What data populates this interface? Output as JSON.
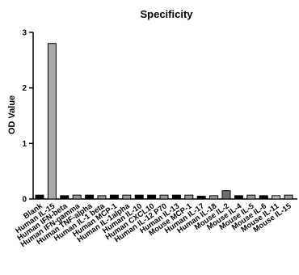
{
  "chart_data": {
    "type": "bar",
    "title": "Specificity",
    "xlabel": "",
    "ylabel": "OD Value",
    "ylim": [
      0,
      3
    ],
    "yticks": [
      0,
      1,
      2,
      3
    ],
    "grid": false,
    "categories": [
      "Blank",
      "Human IL-15",
      "Human IFN-beta",
      "Human IFN-gamma",
      "Human TNF-alpha",
      "Human IL-1 beta",
      "Human MCP-1",
      "Human IL-1alpha",
      "Human IL-10",
      "Human CXCL10",
      "Human IL-12 P70",
      "Human IL-13",
      "Mouse MCP-1",
      "Human IL-17",
      "Human IL-18",
      "Mouse IL-2",
      "Mouse IL-4",
      "Mouse IL-5",
      "Mouse IL-6",
      "Mouse IL-11",
      "Mouse IL-15"
    ],
    "values": [
      0.07,
      2.8,
      0.06,
      0.07,
      0.07,
      0.06,
      0.07,
      0.07,
      0.07,
      0.07,
      0.07,
      0.07,
      0.07,
      0.05,
      0.06,
      0.15,
      0.06,
      0.07,
      0.06,
      0.06,
      0.07
    ],
    "colors": [
      "#000000",
      "#a9a9a9",
      "#000000",
      "#9a9a9a",
      "#000000",
      "#9a9a9a",
      "#000000",
      "#9a9a9a",
      "#000000",
      "#000000",
      "#9a9a9a",
      "#000000",
      "#9a9a9a",
      "#000000",
      "#9a9a9a",
      "#6e6e6e",
      "#000000",
      "#9a9a9a",
      "#000000",
      "#bdbdbd",
      "#9a9a9a"
    ]
  }
}
